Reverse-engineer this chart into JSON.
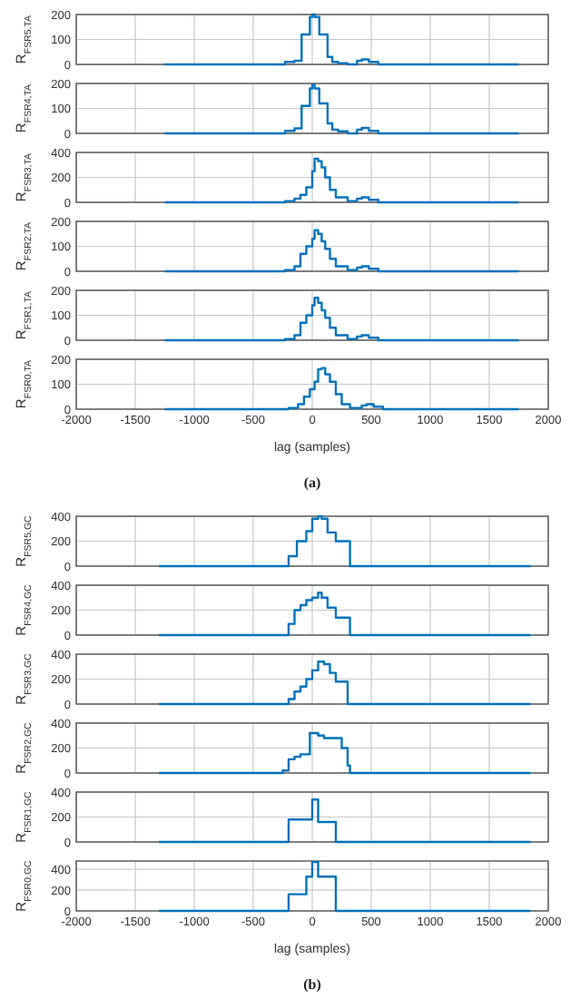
{
  "chart_data": [
    {
      "type": "step",
      "ylabel": "R$_{FSR5,TA}$",
      "xlim": [
        -2000,
        2000
      ],
      "xticks": [
        -2000,
        -1500,
        -1000,
        -500,
        0,
        500,
        1000,
        1500,
        2000
      ],
      "ylim": [
        0,
        200
      ],
      "yticks": [
        0,
        100,
        200
      ],
      "grid": true,
      "tick_labels": "y",
      "series": [
        {
          "color": "#0072bd",
          "x": [
            -1250,
            -230,
            -150,
            -90,
            -20,
            0,
            20,
            60,
            130,
            170,
            220,
            300,
            380,
            420,
            480,
            560,
            1750
          ],
          "values": [
            0,
            10,
            15,
            120,
            190,
            200,
            190,
            120,
            30,
            10,
            5,
            0,
            15,
            20,
            10,
            0,
            0
          ]
        }
      ]
    },
    {
      "type": "step",
      "ylabel": "R$_{FSR4,TA}$",
      "xlim": [
        -2000,
        2000
      ],
      "xticks": [
        -2000,
        -1500,
        -1000,
        -500,
        0,
        500,
        1000,
        1500,
        2000
      ],
      "ylim": [
        0,
        200
      ],
      "yticks": [
        0,
        100,
        200
      ],
      "grid": true,
      "tick_labels": "y",
      "series": [
        {
          "color": "#0072bd",
          "x": [
            -1250,
            -230,
            -150,
            -90,
            -20,
            0,
            20,
            60,
            130,
            170,
            220,
            300,
            380,
            420,
            480,
            560,
            1750
          ],
          "values": [
            0,
            10,
            20,
            110,
            180,
            195,
            180,
            120,
            40,
            15,
            8,
            0,
            15,
            22,
            10,
            0,
            0
          ]
        }
      ]
    },
    {
      "type": "step",
      "ylabel": "R$_{FSR3,TA}$",
      "xlim": [
        -2000,
        2000
      ],
      "xticks": [
        -2000,
        -1500,
        -1000,
        -500,
        0,
        500,
        1000,
        1500,
        2000
      ],
      "ylim": [
        0,
        400
      ],
      "yticks": [
        0,
        200,
        400
      ],
      "grid": true,
      "tick_labels": "y",
      "series": [
        {
          "color": "#0072bd",
          "x": [
            -1250,
            -230,
            -150,
            -100,
            -50,
            0,
            20,
            50,
            80,
            110,
            150,
            200,
            300,
            380,
            420,
            480,
            560,
            1750
          ],
          "values": [
            0,
            10,
            30,
            60,
            120,
            250,
            350,
            330,
            280,
            200,
            100,
            40,
            10,
            30,
            40,
            20,
            0,
            0
          ]
        }
      ]
    },
    {
      "type": "step",
      "ylabel": "R$_{FSR2,TA}$",
      "xlim": [
        -2000,
        2000
      ],
      "xticks": [
        -2000,
        -1500,
        -1000,
        -500,
        0,
        500,
        1000,
        1500,
        2000
      ],
      "ylim": [
        0,
        200
      ],
      "yticks": [
        0,
        100,
        200
      ],
      "grid": true,
      "tick_labels": "y",
      "series": [
        {
          "color": "#0072bd",
          "x": [
            -1250,
            -230,
            -150,
            -100,
            -50,
            0,
            20,
            50,
            80,
            110,
            150,
            200,
            300,
            380,
            420,
            480,
            560,
            1750
          ],
          "values": [
            0,
            5,
            20,
            70,
            100,
            130,
            165,
            150,
            120,
            90,
            50,
            20,
            5,
            15,
            20,
            10,
            0,
            0
          ]
        }
      ]
    },
    {
      "type": "step",
      "ylabel": "R$_{FSR1,TA}$",
      "xlim": [
        -2000,
        2000
      ],
      "xticks": [
        -2000,
        -1500,
        -1000,
        -500,
        0,
        500,
        1000,
        1500,
        2000
      ],
      "ylim": [
        0,
        200
      ],
      "yticks": [
        0,
        100,
        200
      ],
      "grid": true,
      "tick_labels": "y",
      "series": [
        {
          "color": "#0072bd",
          "x": [
            -1250,
            -230,
            -150,
            -100,
            -50,
            0,
            20,
            50,
            80,
            110,
            150,
            200,
            300,
            380,
            420,
            480,
            560,
            1750
          ],
          "values": [
            0,
            5,
            20,
            70,
            100,
            140,
            170,
            150,
            120,
            90,
            50,
            20,
            5,
            15,
            20,
            10,
            0,
            0
          ]
        }
      ]
    },
    {
      "type": "step",
      "ylabel": "R$_{FSR0,TA}$",
      "xlabel": "lag (samples)",
      "annotations": [
        "(a)"
      ],
      "xlim": [
        -2000,
        2000
      ],
      "xticks": [
        -2000,
        -1500,
        -1000,
        -500,
        0,
        500,
        1000,
        1500,
        2000
      ],
      "ylim": [
        0,
        200
      ],
      "yticks": [
        0,
        100,
        200
      ],
      "grid": true,
      "series": [
        {
          "color": "#0072bd",
          "x": [
            -1250,
            -200,
            -120,
            -70,
            -20,
            20,
            50,
            80,
            110,
            150,
            200,
            250,
            320,
            420,
            460,
            520,
            600,
            1750
          ],
          "values": [
            0,
            5,
            20,
            50,
            80,
            110,
            160,
            165,
            140,
            110,
            60,
            20,
            5,
            15,
            20,
            10,
            0,
            0
          ]
        }
      ]
    },
    {
      "type": "step",
      "ylabel": "R$_{FSR5,GC}$",
      "xlim": [
        -2000,
        2000
      ],
      "xticks": [
        -2000,
        -1500,
        -1000,
        -500,
        0,
        500,
        1000,
        1500,
        2000
      ],
      "ylim": [
        0,
        400
      ],
      "yticks": [
        0,
        200,
        400
      ],
      "grid": true,
      "tick_labels": "y",
      "series": [
        {
          "color": "#0072bd",
          "x": [
            -1300,
            -200,
            -130,
            -50,
            0,
            50,
            80,
            130,
            200,
            320,
            1850
          ],
          "values": [
            0,
            80,
            200,
            280,
            380,
            400,
            380,
            270,
            200,
            0,
            0
          ]
        }
      ]
    },
    {
      "type": "step",
      "ylabel": "R$_{FSR4,GC}$",
      "xlim": [
        -2000,
        2000
      ],
      "xticks": [
        -2000,
        -1500,
        -1000,
        -500,
        0,
        500,
        1000,
        1500,
        2000
      ],
      "ylim": [
        0,
        400
      ],
      "yticks": [
        0,
        200,
        400
      ],
      "grid": true,
      "tick_labels": "y",
      "series": [
        {
          "color": "#0072bd",
          "x": [
            -1300,
            -200,
            -150,
            -100,
            -50,
            0,
            50,
            80,
            130,
            200,
            320,
            1850
          ],
          "values": [
            0,
            90,
            200,
            240,
            280,
            300,
            340,
            300,
            220,
            140,
            0,
            0
          ]
        }
      ]
    },
    {
      "type": "step",
      "ylabel": "R$_{FSR3,GC}$",
      "xlim": [
        -2000,
        2000
      ],
      "xticks": [
        -2000,
        -1500,
        -1000,
        -500,
        0,
        500,
        1000,
        1500,
        2000
      ],
      "ylim": [
        0,
        400
      ],
      "yticks": [
        0,
        200,
        400
      ],
      "grid": true,
      "tick_labels": "y",
      "series": [
        {
          "color": "#0072bd",
          "x": [
            -1300,
            -200,
            -150,
            -100,
            -50,
            0,
            50,
            100,
            150,
            200,
            300,
            1850
          ],
          "values": [
            0,
            40,
            100,
            140,
            200,
            270,
            340,
            320,
            250,
            180,
            0,
            0
          ]
        }
      ]
    },
    {
      "type": "step",
      "ylabel": "R$_{FSR2,GC}$",
      "xlim": [
        -2000,
        2000
      ],
      "xticks": [
        -2000,
        -1500,
        -1000,
        -500,
        0,
        500,
        1000,
        1500,
        2000
      ],
      "ylim": [
        0,
        400
      ],
      "yticks": [
        0,
        200,
        400
      ],
      "grid": true,
      "tick_labels": "y",
      "series": [
        {
          "color": "#0072bd",
          "x": [
            -1300,
            -250,
            -200,
            -150,
            -100,
            -20,
            50,
            100,
            250,
            300,
            320,
            1850
          ],
          "values": [
            0,
            20,
            110,
            130,
            150,
            320,
            300,
            280,
            200,
            60,
            0,
            0
          ]
        }
      ]
    },
    {
      "type": "step",
      "ylabel": "R$_{FSR1,GC}$",
      "xlim": [
        -2000,
        2000
      ],
      "xticks": [
        -2000,
        -1500,
        -1000,
        -500,
        0,
        500,
        1000,
        1500,
        2000
      ],
      "ylim": [
        0,
        400
      ],
      "yticks": [
        0,
        200,
        400
      ],
      "grid": true,
      "tick_labels": "y",
      "series": [
        {
          "color": "#0072bd",
          "x": [
            -1300,
            -200,
            0,
            50,
            200,
            1850
          ],
          "values": [
            0,
            180,
            340,
            160,
            0,
            0
          ]
        }
      ]
    },
    {
      "type": "step",
      "ylabel": "R$_{FSR0,GC}$",
      "xlabel": "lag (samples)",
      "annotations": [
        "(b)"
      ],
      "xlim": [
        -2000,
        2000
      ],
      "xticks": [
        -2000,
        -1500,
        -1000,
        -500,
        0,
        500,
        1000,
        1500,
        2000
      ],
      "ylim": [
        0,
        480
      ],
      "yticks": [
        0,
        200,
        400
      ],
      "grid": true,
      "series": [
        {
          "color": "#0072bd",
          "x": [
            -1300,
            -200,
            -50,
            0,
            50,
            200,
            1850
          ],
          "values": [
            0,
            160,
            330,
            470,
            330,
            0,
            0
          ]
        }
      ]
    }
  ]
}
